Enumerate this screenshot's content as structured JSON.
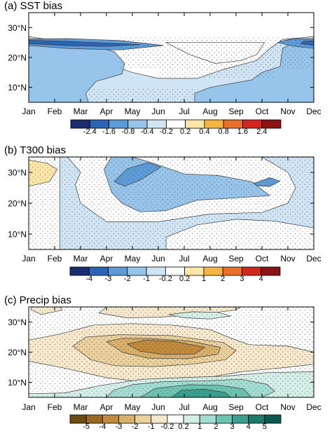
{
  "x_months": [
    "Jan",
    "Feb",
    "Mar",
    "Apr",
    "May",
    "Jun",
    "Jul",
    "Aug",
    "Sep",
    "Oct",
    "Nov",
    "Dec"
  ],
  "y_ticks": [
    {
      "lat": 10,
      "label": "10°N"
    },
    {
      "lat": 20,
      "label": "20°N"
    },
    {
      "lat": 30,
      "label": "30°N"
    }
  ],
  "ylim": [
    5,
    35
  ],
  "stipple_meaning_shown": false,
  "panels": [
    {
      "id": "sst",
      "title": "(a) SST bias",
      "colorbar_labels": [
        "-2.4",
        "-1.6",
        "-0.8",
        "-0.4",
        "-0.2",
        "0.2",
        "0.4",
        "0.8",
        "1.6",
        "2.4"
      ],
      "colorbar_colors": [
        "#1a2d6e",
        "#2c64b4",
        "#5c9ad8",
        "#97c4ea",
        "#cfe5f6",
        "#ffffff",
        "#fde6a8",
        "#f5b545",
        "#e9702a",
        "#d0271f",
        "#8a1414"
      ]
    },
    {
      "id": "t300",
      "title": "(b) T300 bias",
      "colorbar_labels": [
        "-4",
        "-3",
        "-2",
        "-1",
        "-0.2",
        "0.2",
        "1",
        "2",
        "3",
        "4"
      ],
      "colorbar_colors": [
        "#1a2d6e",
        "#2c64b4",
        "#5c9ad8",
        "#97c4ea",
        "#cfe5f6",
        "#ffffff",
        "#fde6a8",
        "#f5b545",
        "#e9702a",
        "#d0271f",
        "#8a1414"
      ]
    },
    {
      "id": "precip",
      "title": "(c) Precip bias",
      "colorbar_labels": [
        "-5",
        "-4",
        "-3",
        "-2",
        "-1",
        "-0.2",
        "0.2",
        "1",
        "2",
        "3",
        "4",
        "5"
      ],
      "colorbar_colors": [
        "#6e4a13",
        "#9a6a22",
        "#c08a3a",
        "#d9b06a",
        "#ead09c",
        "#f6e8cc",
        "#ffffff",
        "#d4eee8",
        "#a3dcd0",
        "#6cc3b2",
        "#37a08e",
        "#1c7a6a",
        "#0b5a4e"
      ]
    }
  ],
  "chart_data": [
    {
      "type": "heatmap",
      "title": "(a) SST bias",
      "x": [
        "Jan",
        "Feb",
        "Mar",
        "Apr",
        "May",
        "Jun",
        "Jul",
        "Aug",
        "Sep",
        "Oct",
        "Nov",
        "Dec"
      ],
      "ylim": [
        5,
        35
      ],
      "regions": [
        {
          "value": -0.3,
          "polygon": [
            [
              1,
              5
            ],
            [
              12,
              5
            ],
            [
              12,
              27
            ],
            [
              10.8,
              26
            ],
            [
              10.3,
              23
            ],
            [
              9.8,
              19
            ],
            [
              8.5,
              16
            ],
            [
              7.5,
              13
            ],
            [
              6,
              13
            ],
            [
              5,
              15
            ],
            [
              4,
              18
            ],
            [
              2.5,
              25
            ],
            [
              1,
              27
            ]
          ]
        },
        {
          "value": -0.6,
          "polygon": [
            [
              1,
              5
            ],
            [
              3.3,
              5
            ],
            [
              3.2,
              8
            ],
            [
              3.6,
              12
            ],
            [
              4.6,
              14.5
            ],
            [
              4.7,
              18
            ],
            [
              4.3,
              22
            ],
            [
              2.5,
              26
            ],
            [
              1,
              26
            ]
          ]
        },
        {
          "value": -0.6,
          "polygon": [
            [
              12,
              5
            ],
            [
              7.4,
              5
            ],
            [
              7.4,
              8
            ],
            [
              8,
              10
            ],
            [
              9.6,
              12.5
            ],
            [
              10,
              15
            ],
            [
              10.7,
              17
            ],
            [
              10.8,
              23
            ],
            [
              11.4,
              26
            ],
            [
              12,
              26
            ]
          ]
        },
        {
          "value": -1.2,
          "polygon": [
            [
              1,
              24
            ],
            [
              2.5,
              23
            ],
            [
              4.5,
              22.5
            ],
            [
              6.2,
              24
            ],
            [
              4.5,
              25.7
            ],
            [
              2.5,
              26.3
            ],
            [
              1,
              26.2
            ]
          ]
        },
        {
          "value": -1.2,
          "polygon": [
            [
              12,
              23
            ],
            [
              11.2,
              23.8
            ],
            [
              10.6,
              25
            ],
            [
              11.2,
              26.3
            ],
            [
              12,
              26.2
            ]
          ]
        },
        {
          "value": -2.0,
          "polygon": [
            [
              1,
              24.6
            ],
            [
              2.6,
              23.9
            ],
            [
              4,
              23.7
            ],
            [
              5.3,
              24.3
            ],
            [
              4,
              24.8
            ],
            [
              2.5,
              25.4
            ],
            [
              1,
              25.8
            ]
          ]
        },
        {
          "value": -2.0,
          "polygon": [
            [
              12,
              24
            ],
            [
              11.5,
              24.6
            ],
            [
              11.6,
              25.4
            ],
            [
              12,
              25.6
            ]
          ]
        },
        {
          "value": 0.0,
          "polygon": [
            [
              6.3,
              25
            ],
            [
              7.2,
              21
            ],
            [
              8.2,
              18
            ],
            [
              9.2,
              19
            ],
            [
              9.8,
              21
            ],
            [
              10.1,
              25
            ]
          ]
        }
      ],
      "stippled": [
        [
          3.3,
          5,
          7.5,
          10
        ],
        [
          6,
          13,
          10.5,
          22
        ],
        [
          4.5,
          16,
          12,
          27
        ]
      ]
    },
    {
      "type": "heatmap",
      "title": "(b) T300 bias",
      "x": [
        "Jan",
        "Feb",
        "Mar",
        "Apr",
        "May",
        "Jun",
        "Jul",
        "Aug",
        "Sep",
        "Oct",
        "Nov",
        "Dec"
      ],
      "ylim": [
        5,
        35
      ],
      "regions": [
        {
          "value": -0.5,
          "polygon": [
            [
              2.2,
              5
            ],
            [
              12,
              5
            ],
            [
              12,
              35
            ],
            [
              10,
              35
            ],
            [
              11,
              30
            ],
            [
              11.3,
              25
            ],
            [
              11,
              20
            ],
            [
              10,
              17
            ],
            [
              8,
              16.5
            ],
            [
              6,
              14
            ],
            [
              4,
              14
            ],
            [
              3,
              20
            ],
            [
              2.8,
              26
            ],
            [
              3,
              30
            ],
            [
              2.5,
              35
            ],
            [
              2.2,
              35
            ]
          ]
        },
        {
          "value": -1.5,
          "polygon": [
            [
              3.9,
              31
            ],
            [
              4.2,
              23.5
            ],
            [
              4.6,
              20
            ],
            [
              5.3,
              17.2
            ],
            [
              6.3,
              17.6
            ],
            [
              7.5,
              21
            ],
            [
              9.5,
              22
            ],
            [
              10.3,
              22.5
            ],
            [
              9.6,
              27
            ],
            [
              8.3,
              29
            ],
            [
              7,
              29.5
            ],
            [
              5.8,
              33
            ],
            [
              5,
              35
            ],
            [
              4.2,
              35
            ]
          ]
        },
        {
          "value": -2.5,
          "polygon": [
            [
              4.3,
              27
            ],
            [
              4.8,
              31.2
            ],
            [
              5.6,
              33.2
            ],
            [
              6.1,
              31.7
            ],
            [
              5.3,
              27.5
            ],
            [
              4.7,
              25.5
            ]
          ]
        },
        {
          "value": -2.5,
          "polygon": [
            [
              9.7,
              26.5
            ],
            [
              10.3,
              28.3
            ],
            [
              10.7,
              27.2
            ],
            [
              10.3,
              25.4
            ],
            [
              9.8,
              25.7
            ]
          ]
        },
        {
          "value": 0.6,
          "polygon": [
            [
              1,
              34
            ],
            [
              1.7,
              33
            ],
            [
              2.1,
              31
            ],
            [
              1.8,
              27
            ],
            [
              1,
              25.5
            ]
          ]
        },
        {
          "value": 0.0,
          "polygon": [
            [
              6.3,
              5
            ],
            [
              6.3,
              9
            ],
            [
              7.5,
              13
            ],
            [
              9,
              14.8
            ],
            [
              10.5,
              14.2
            ],
            [
              12,
              12
            ],
            [
              12,
              5
            ]
          ]
        }
      ],
      "stippled": [
        [
          1,
          5,
          12,
          35
        ]
      ]
    },
    {
      "type": "heatmap",
      "title": "(c) Precip bias",
      "x": [
        "Jan",
        "Feb",
        "Mar",
        "Apr",
        "May",
        "Jun",
        "Jul",
        "Aug",
        "Sep",
        "Oct",
        "Nov",
        "Dec"
      ],
      "ylim": [
        5,
        35
      ],
      "regions": [
        {
          "value": -0.6,
          "polygon": [
            [
              1,
              17
            ],
            [
              2.5,
              14.5
            ],
            [
              4,
              11.5
            ],
            [
              5.5,
              10
            ],
            [
              7.5,
              11
            ],
            [
              9.2,
              13.5
            ],
            [
              11,
              15
            ],
            [
              12,
              16
            ],
            [
              12,
              20
            ],
            [
              11,
              22
            ],
            [
              9.5,
              22.5
            ],
            [
              8.7,
              25
            ],
            [
              8,
              27.5
            ],
            [
              6.5,
              29
            ],
            [
              5,
              29.5
            ],
            [
              3.5,
              29
            ],
            [
              2.2,
              26
            ],
            [
              1,
              24
            ]
          ]
        },
        {
          "value": -1.5,
          "polygon": [
            [
              2.7,
              22
            ],
            [
              3.4,
              17.5
            ],
            [
              4.3,
              15.5
            ],
            [
              5.8,
              15.2
            ],
            [
              7.3,
              16
            ],
            [
              8.6,
              17.5
            ],
            [
              9,
              20.5
            ],
            [
              8.5,
              23.2
            ],
            [
              6.5,
              25.5
            ],
            [
              4.5,
              25.8
            ],
            [
              3.2,
              25
            ]
          ]
        },
        {
          "value": -2.5,
          "polygon": [
            [
              4,
              23.5
            ],
            [
              4.6,
              20
            ],
            [
              5.6,
              18
            ],
            [
              7.1,
              17.8
            ],
            [
              8.3,
              19.3
            ],
            [
              8.4,
              21.6
            ],
            [
              7.2,
              23.7
            ],
            [
              5.7,
              24.5
            ],
            [
              4.6,
              24.6
            ]
          ]
        },
        {
          "value": -3.5,
          "polygon": [
            [
              4.8,
              22.7
            ],
            [
              5.3,
              20.3
            ],
            [
              6.2,
              19.2
            ],
            [
              7.4,
              19.4
            ],
            [
              7.8,
              21.6
            ],
            [
              6.6,
              23.6
            ],
            [
              5.5,
              24
            ]
          ]
        },
        {
          "value": -0.6,
          "polygon": [
            [
              3.7,
              33
            ],
            [
              4.8,
              31.4
            ],
            [
              6,
              31.6
            ],
            [
              7.5,
              32.4
            ],
            [
              9,
              34
            ],
            [
              9.2,
              35
            ],
            [
              4,
              35
            ]
          ]
        },
        {
          "value": -0.6,
          "polygon": [
            [
              1.1,
              34
            ],
            [
              1.5,
              32.5
            ],
            [
              2.3,
              34
            ],
            [
              2.2,
              35
            ],
            [
              1.1,
              35
            ]
          ]
        },
        {
          "value": 0.6,
          "polygon": [
            [
              1,
              5
            ],
            [
              12,
              5
            ],
            [
              12,
              13.5
            ],
            [
              10.2,
              13.2
            ],
            [
              8.5,
              12
            ],
            [
              6.8,
              11.5
            ],
            [
              5.4,
              11
            ],
            [
              3.8,
              9
            ],
            [
              2.4,
              6.5
            ],
            [
              1,
              6.2
            ]
          ]
        },
        {
          "value": 1.5,
          "polygon": [
            [
              4,
              5
            ],
            [
              4.3,
              7.5
            ],
            [
              5,
              9.2
            ],
            [
              6.2,
              10.2
            ],
            [
              7.8,
              10.5
            ],
            [
              9.2,
              11
            ],
            [
              10.2,
              9.3
            ],
            [
              10.5,
              7
            ],
            [
              10,
              5
            ]
          ]
        },
        {
          "value": 2.5,
          "polygon": [
            [
              5.3,
              5
            ],
            [
              5.9,
              8
            ],
            [
              7.2,
              9.2
            ],
            [
              8.4,
              9
            ],
            [
              9.3,
              7.8
            ],
            [
              9.6,
              5
            ]
          ]
        },
        {
          "value": 3.5,
          "polygon": [
            [
              6.5,
              5
            ],
            [
              6.9,
              7.4
            ],
            [
              7.8,
              7.7
            ],
            [
              8.6,
              6.6
            ],
            [
              8.8,
              5
            ]
          ]
        },
        {
          "value": 0.6,
          "polygon": [
            [
              6.4,
              32.5
            ],
            [
              7,
              31.4
            ],
            [
              8,
              31
            ],
            [
              8.8,
              32
            ],
            [
              8.3,
              33.2
            ],
            [
              7.3,
              33.4
            ]
          ]
        }
      ],
      "stippled": [
        [
          2.3,
          10,
          12,
          30
        ],
        [
          1,
          5,
          12,
          35
        ]
      ]
    }
  ]
}
